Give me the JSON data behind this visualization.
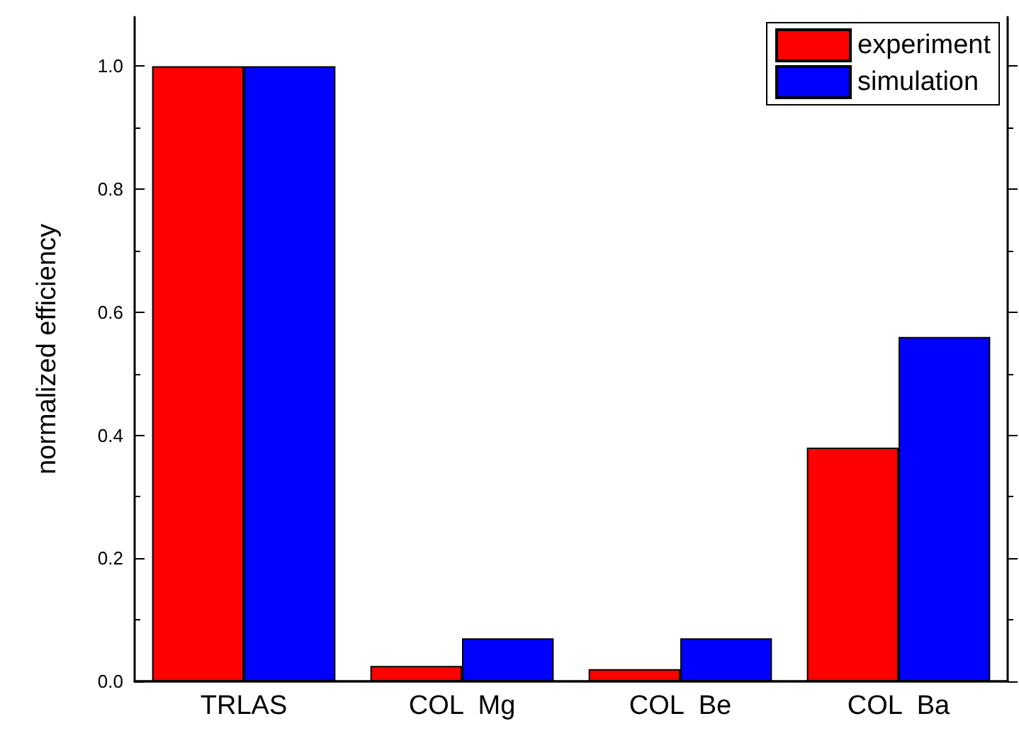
{
  "chart_data": {
    "type": "bar",
    "ylabel": "normalized efficiency",
    "categories": [
      "TRLAS",
      "COL  Mg",
      "COL  Be",
      "COL  Ba"
    ],
    "series": [
      {
        "name": "experiment",
        "color": "#ff0000",
        "values": [
          1.0,
          0.025,
          0.02,
          0.38
        ]
      },
      {
        "name": "simulation",
        "color": "#0000ff",
        "values": [
          1.0,
          0.07,
          0.07,
          0.56
        ]
      }
    ],
    "ylim": [
      0,
      1.08
    ],
    "yticks": [
      {
        "value": 0,
        "label": "0.0"
      },
      0.2,
      0.4,
      0.6,
      0.8,
      {
        "value": 1,
        "label": "1.0"
      }
    ],
    "grid": false,
    "legend": "top right"
  }
}
